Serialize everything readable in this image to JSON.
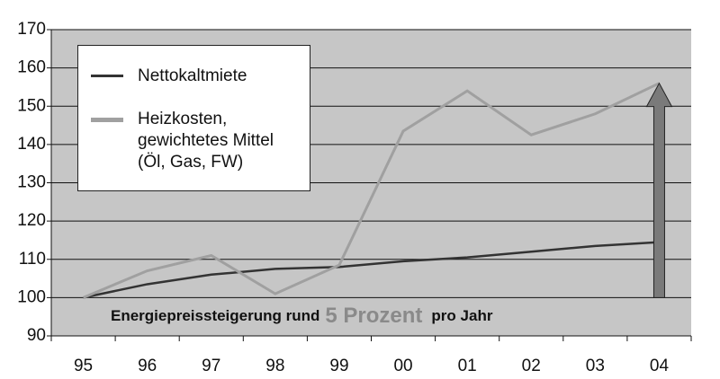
{
  "chart_data": {
    "type": "line",
    "categories": [
      "95",
      "96",
      "97",
      "98",
      "99",
      "00",
      "01",
      "02",
      "03",
      "04"
    ],
    "series": [
      {
        "name": "Nettokaltmiete",
        "color": "#333333",
        "values": [
          100,
          103.5,
          106,
          107.5,
          108,
          109.5,
          110.5,
          112,
          113.5,
          114.5
        ]
      },
      {
        "name": "Heizkosten, gewichtetes Mittel (Öl, Gas, FW)",
        "color": "#a0a0a0",
        "values": [
          100,
          107,
          111,
          101,
          108.5,
          143.5,
          154,
          142.5,
          148,
          156
        ]
      }
    ],
    "ylim": [
      90,
      170
    ],
    "yticks": [
      90,
      100,
      110,
      120,
      130,
      140,
      150,
      160,
      170
    ],
    "grid": true,
    "annotation": [
      "Energiepreissteigerung rund",
      "5 Prozent",
      "pro Jahr"
    ]
  }
}
